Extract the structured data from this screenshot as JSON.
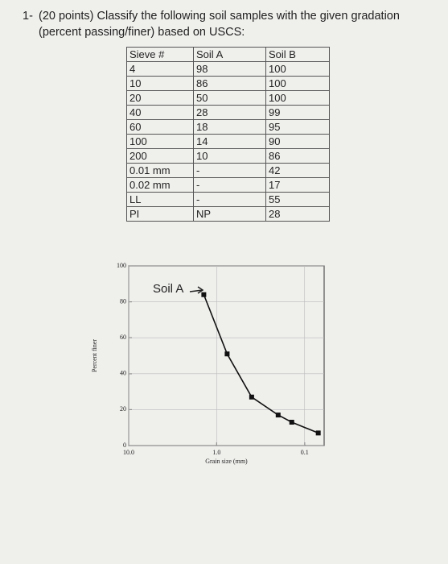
{
  "question": {
    "number": "1-",
    "text": "(20 points) Classify the following soil samples with the given gradation (percent passing/finer) based on USCS:"
  },
  "table": {
    "header": [
      "Sieve #",
      "Soil A",
      "Soil B"
    ],
    "rows": [
      [
        "4",
        "98",
        "100"
      ],
      [
        "10",
        "86",
        "100"
      ],
      [
        "20",
        "50",
        "100"
      ],
      [
        "40",
        "28",
        "99"
      ],
      [
        "60",
        "18",
        "95"
      ],
      [
        "100",
        "14",
        "90"
      ],
      [
        "200",
        "10",
        "86"
      ],
      [
        "0.01 mm",
        "-",
        "42"
      ],
      [
        "0.02 mm",
        "-",
        "17"
      ],
      [
        "LL",
        "-",
        "55"
      ],
      [
        "PI",
        "NP",
        "28"
      ]
    ]
  },
  "chart_data": {
    "type": "line",
    "ylabel": "Percent finer",
    "xlabel": "Grain size (mm)",
    "annotation": "Soil A",
    "log_x": true,
    "grid": true,
    "xlim": [
      10,
      0.06
    ],
    "xticks": [
      {
        "value": 10,
        "label": "10.0"
      },
      {
        "value": 1,
        "label": "1.0"
      },
      0.1
    ],
    "ylim": [
      0,
      100
    ],
    "yticks": [
      0,
      20,
      40,
      60,
      80,
      100
    ],
    "series": [
      {
        "name": "Soil A",
        "color": "#111111",
        "x": [
          1.4,
          0.76,
          0.4,
          0.2,
          0.14,
          0.07
        ],
        "values": [
          84,
          51,
          27,
          17,
          13,
          7
        ]
      }
    ]
  }
}
